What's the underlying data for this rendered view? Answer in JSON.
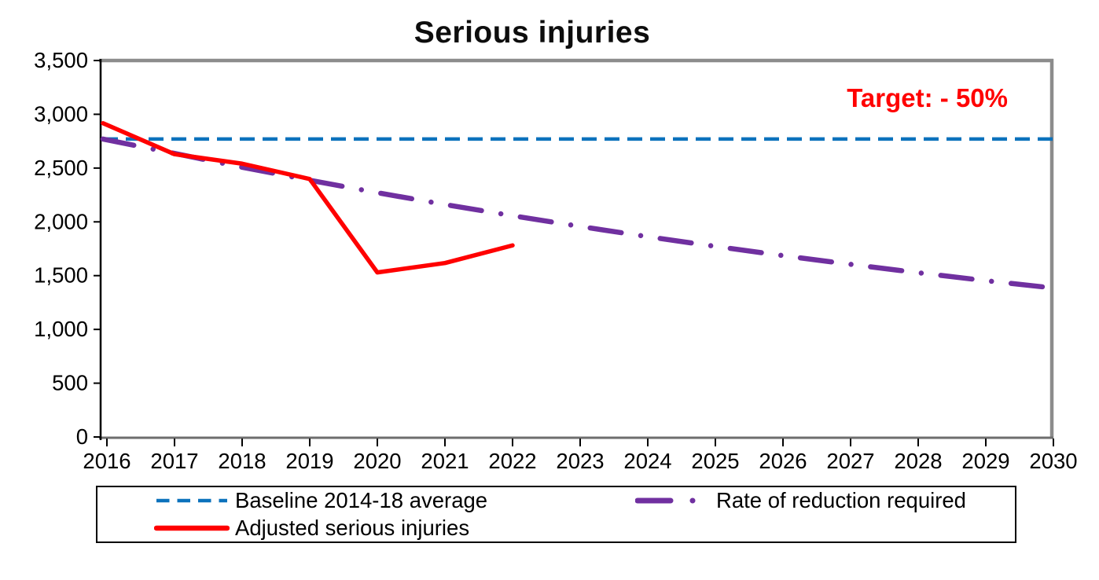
{
  "page": {
    "title": "Serious injuries",
    "target_annotation": "Target: - 50%"
  },
  "colors": {
    "baseline_blue": "#0C72BC",
    "required_purple": "#7030A0",
    "adjusted_red": "#FF0000",
    "target_text_red": "#FF0000",
    "frame_gray": "#8C8C8C",
    "bottom_axis_gray": "#6E6E6E",
    "axis_black": "#000000"
  },
  "chart_data": {
    "type": "line",
    "title": "Serious injuries",
    "xlabel": "",
    "ylabel": "",
    "x": [
      2016,
      2017,
      2018,
      2019,
      2020,
      2021,
      2022,
      2023,
      2024,
      2025,
      2026,
      2027,
      2028,
      2029,
      2030
    ],
    "ylim": [
      0,
      3500
    ],
    "ytick_step": 500,
    "yticks": [
      {
        "value": 0,
        "label": "0"
      },
      {
        "value": 500,
        "label": "500"
      },
      {
        "value": 1000,
        "label": "1,000"
      },
      {
        "value": 1500,
        "label": "1,500"
      },
      {
        "value": 2000,
        "label": "2,000"
      },
      {
        "value": 2500,
        "label": "2,500"
      },
      {
        "value": 3000,
        "label": "3,000"
      },
      {
        "value": 3500,
        "label": "3,500"
      }
    ],
    "grid": false,
    "legend_position": "bottom",
    "annotations": [
      {
        "text": "Target: - 50%",
        "color": "#FF0000",
        "position": "top-right"
      }
    ],
    "series": [
      {
        "name": "Baseline 2014-18 average",
        "style": "dashed",
        "color": "#0C72BC",
        "values": [
          2770,
          2770,
          2770,
          2770,
          2770,
          2770,
          2770,
          2770,
          2770,
          2770,
          2770,
          2770,
          2770,
          2770,
          2770
        ]
      },
      {
        "name": "Rate of reduction required",
        "style": "dash-dot",
        "color": "#7030A0",
        "values": [
          2770,
          2636,
          2508,
          2387,
          2271,
          2161,
          2057,
          1957,
          1862,
          1772,
          1686,
          1605,
          1527,
          1453,
          1385
        ]
      },
      {
        "name": "Adjusted serious injuries",
        "style": "solid",
        "color": "#FF0000",
        "values": [
          2917,
          2629,
          2541,
          2398,
          1530,
          1617,
          1781,
          null,
          null,
          null,
          null,
          null,
          null,
          null,
          null
        ]
      }
    ]
  },
  "legend": {
    "items": [
      {
        "label": "Baseline 2014-18 average",
        "series_index": 0
      },
      {
        "label": "Rate of reduction required",
        "series_index": 1
      },
      {
        "label": "Adjusted serious injuries",
        "series_index": 2
      }
    ]
  }
}
